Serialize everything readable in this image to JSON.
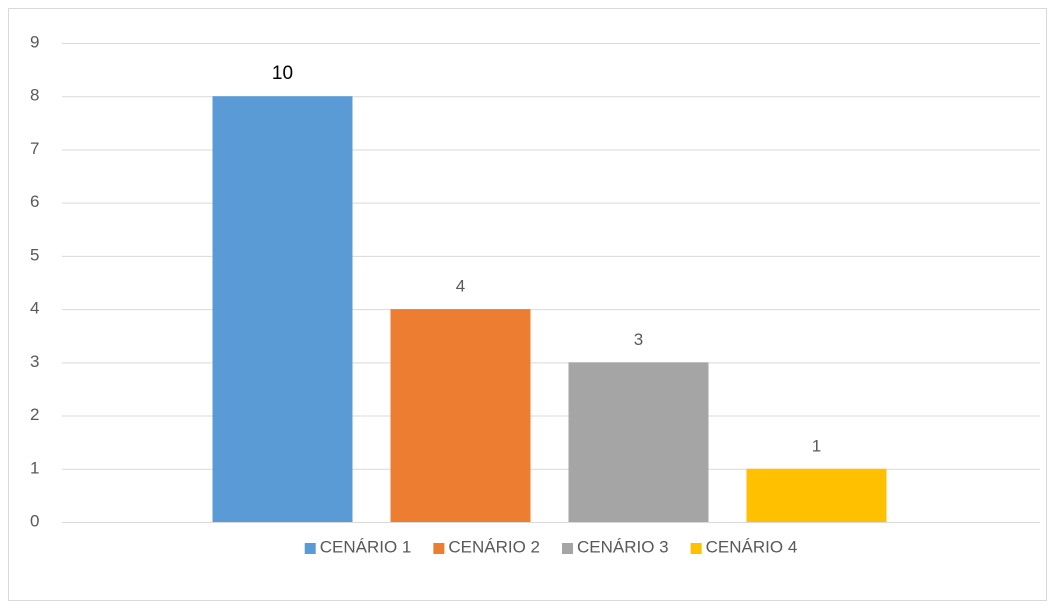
{
  "chart_data": {
    "type": "bar",
    "series": [
      {
        "name": "CENÁRIO 1",
        "color": "#5b9bd5",
        "values": [
          8
        ],
        "annotation": "10"
      },
      {
        "name": "CENÁRIO 2",
        "color": "#ed7d31",
        "values": [
          4
        ]
      },
      {
        "name": "CENÁRIO 3",
        "color": "#a5a5a5",
        "values": [
          3
        ]
      },
      {
        "name": "CENÁRIO 4",
        "color": "#ffc000",
        "values": [
          1
        ]
      }
    ],
    "ylim": [
      0,
      9
    ],
    "yticks": [
      0,
      1,
      2,
      3,
      4,
      5,
      6,
      7,
      8,
      9
    ],
    "grid": true,
    "legend": "bottom"
  }
}
